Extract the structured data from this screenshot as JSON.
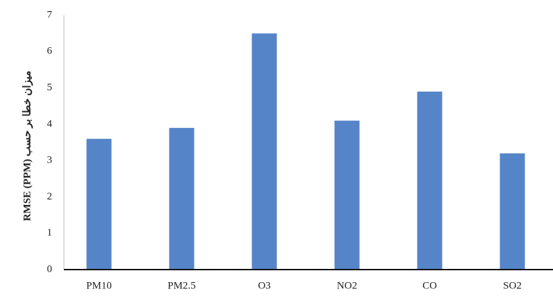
{
  "chart_data": {
    "type": "bar",
    "y_axis_label": "میزان خطا بر حسب RMSE (PPM)",
    "categories": [
      "PM10",
      "PM2.5",
      "O3",
      "NO2",
      "CO",
      "SO2"
    ],
    "values": [
      3.6,
      3.9,
      6.5,
      4.1,
      4.9,
      3.2
    ],
    "color": "#5585c8",
    "ylim": [
      0,
      7
    ],
    "yticks": [
      0,
      1,
      2,
      3,
      4,
      5,
      6,
      7
    ],
    "grid": false
  }
}
